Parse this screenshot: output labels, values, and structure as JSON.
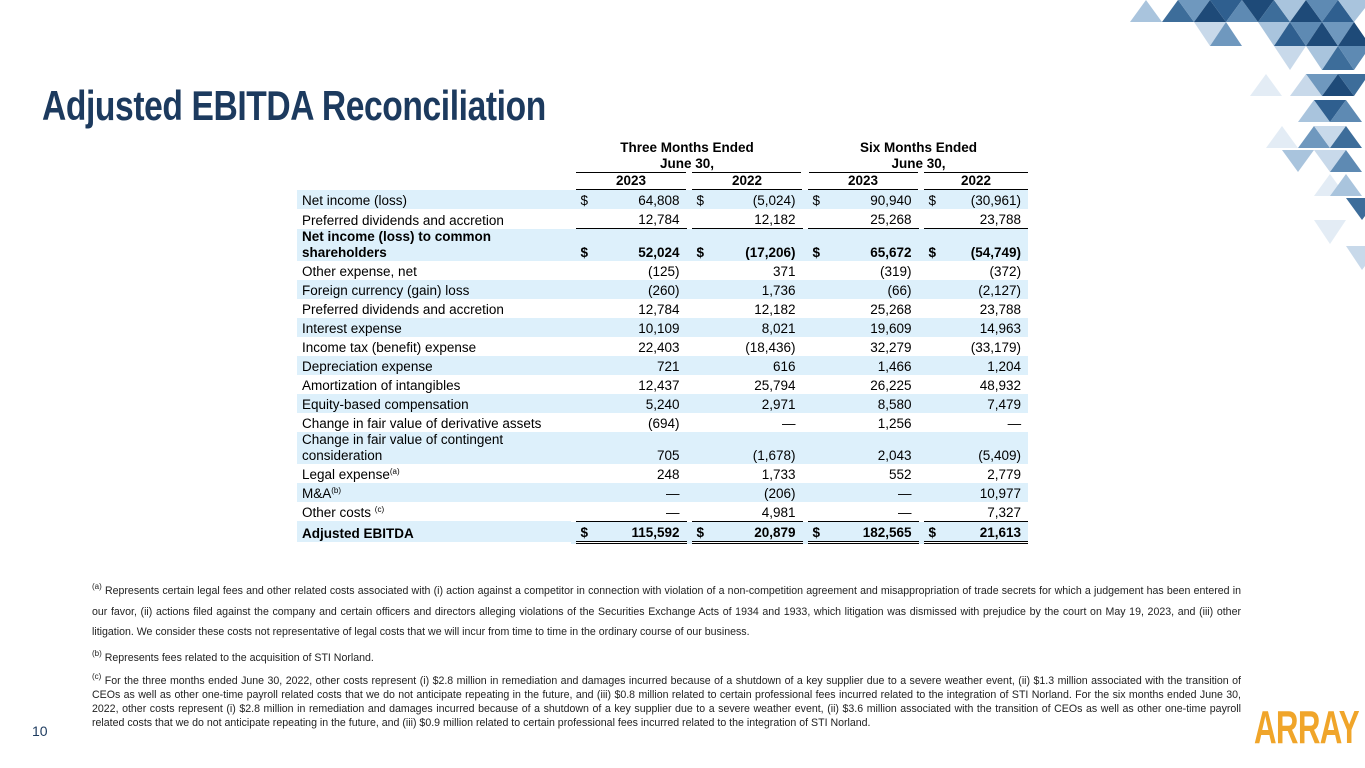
{
  "title": "Adjusted EBITDA Reconciliation",
  "table": {
    "group_headers": [
      [
        "Three Months Ended",
        "June 30,"
      ],
      [
        "Six Months Ended",
        "June 30,"
      ]
    ],
    "years": [
      "2023",
      "2022",
      "2023",
      "2022"
    ],
    "currency_symbol": "$",
    "rows": [
      {
        "label": "Net income (loss)",
        "values": [
          "64,808",
          "(5,024)",
          "90,940",
          "(30,961)"
        ],
        "dollar": true
      },
      {
        "label": "Preferred dividends and accretion",
        "values": [
          "12,784",
          "12,182",
          "25,268",
          "23,788"
        ],
        "underline": "single"
      },
      {
        "label": "Net income (loss) to common shareholders",
        "values": [
          "52,024",
          "(17,206)",
          "65,672",
          "(54,749)"
        ],
        "dollar": true,
        "bold": true
      },
      {
        "label": "Other expense, net",
        "values": [
          "(125)",
          "371",
          "(319)",
          "(372)"
        ]
      },
      {
        "label": "Foreign currency (gain) loss",
        "values": [
          "(260)",
          "1,736",
          "(66)",
          "(2,127)"
        ]
      },
      {
        "label": "Preferred dividends and accretion",
        "values": [
          "12,784",
          "12,182",
          "25,268",
          "23,788"
        ]
      },
      {
        "label": "Interest expense",
        "values": [
          "10,109",
          "8,021",
          "19,609",
          "14,963"
        ]
      },
      {
        "label": "Income tax (benefit) expense",
        "values": [
          "22,403",
          "(18,436)",
          "32,279",
          "(33,179)"
        ]
      },
      {
        "label": "Depreciation expense",
        "values": [
          "721",
          "616",
          "1,466",
          "1,204"
        ]
      },
      {
        "label": "Amortization of intangibles",
        "values": [
          "12,437",
          "25,794",
          "26,225",
          "48,932"
        ]
      },
      {
        "label": "Equity-based compensation",
        "values": [
          "5,240",
          "2,971",
          "8,580",
          "7,479"
        ]
      },
      {
        "label": "Change in fair value of derivative assets",
        "values": [
          "(694)",
          "—",
          "1,256",
          "—"
        ]
      },
      {
        "label": "Change in fair value of contingent consideration",
        "values": [
          "705",
          "(1,678)",
          "2,043",
          "(5,409)"
        ]
      },
      {
        "label": "Legal expense",
        "note": "(a)",
        "values": [
          "248",
          "1,733",
          "552",
          "2,779"
        ]
      },
      {
        "label": "M&A",
        "note": "(b)",
        "values": [
          "—",
          "(206)",
          "—",
          "10,977"
        ]
      },
      {
        "label": "Other costs ",
        "note": "(c)",
        "values": [
          "—",
          "4,981",
          "—",
          "7,327"
        ],
        "underline": "single"
      },
      {
        "label": "Adjusted EBITDA",
        "values": [
          "115,592",
          "20,879",
          "182,565",
          "21,613"
        ],
        "dollar": true,
        "bold": true,
        "underline": "double"
      }
    ]
  },
  "footnotes": [
    {
      "marker": "(a)",
      "text": "Represents certain legal fees and other related costs associated with (i) action against a competitor in connection with violation of a non-competition agreement and misappropriation of trade secrets for which a judgement has been entered in our favor, (ii) actions filed against the company and certain officers and directors alleging violations of the Securities Exchange Acts of 1934 and 1933, which litigation was dismissed with prejudice by the court on May 19, 2023, and (iii) other litigation. We consider these costs not representative of legal costs that we will incur from time to time in the ordinary course of our business."
    },
    {
      "marker": "(b)",
      "text": "Represents fees related to the acquisition of STI Norland."
    },
    {
      "marker": "(c)",
      "text": "For the three months ended June 30, 2022, other costs represent (i) $2.8 million in remediation and damages incurred because of a shutdown of a key supplier due to a severe weather event, (ii) $1.3 million associated with the transition of CEOs as well as other one-time payroll related costs that we do not anticipate repeating in the future, and (iii) $0.8 million related to certain professional fees incurred related to the integration of STI Norland. For the six months ended June 30, 2022, other costs represent (i) $2.8 million in remediation and damages incurred because of a shutdown of a key supplier due to a severe weather event, (ii) $3.6 million associated with the transition of CEOs as well as other one-time payroll related costs that we do not anticipate repeating in the future, and (iii) $0.9 million related to certain professional fees incurred related to the integration of STI Norland."
    }
  ],
  "page_number": "10",
  "logo": "ARRAY"
}
